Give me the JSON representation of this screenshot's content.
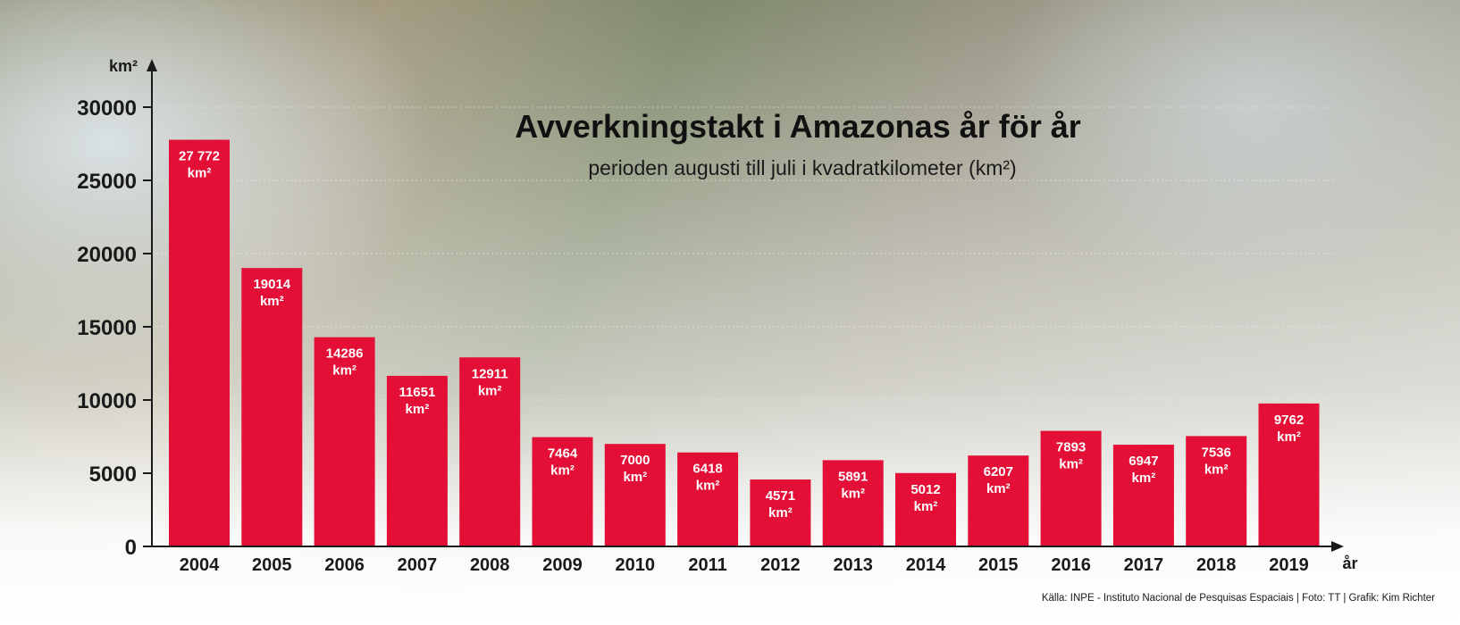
{
  "chart_data": {
    "type": "bar",
    "title": "Avverkningstakt i Amazonas år för år",
    "subtitle": "perioden augusti till juli i kvadratkilometer (km²)",
    "ylabel": "km²",
    "xlabel": "år",
    "ylim": [
      0,
      30000
    ],
    "yticks": [
      0,
      5000,
      10000,
      15000,
      20000,
      25000,
      30000
    ],
    "categories": [
      "2004",
      "2005",
      "2006",
      "2007",
      "2008",
      "2009",
      "2010",
      "2011",
      "2012",
      "2013",
      "2014",
      "2015",
      "2016",
      "2017",
      "2018",
      "2019"
    ],
    "values": [
      27772,
      19014,
      14286,
      11651,
      12911,
      7464,
      7000,
      6418,
      4571,
      5891,
      5012,
      6207,
      7893,
      6947,
      7536,
      9762
    ],
    "value_labels": [
      "27 772",
      "19014",
      "14286",
      "11651",
      "12911",
      "7464",
      "7000",
      "6418",
      "4571",
      "5891",
      "5012",
      "6207",
      "7893",
      "6947",
      "7536",
      "9762"
    ],
    "value_unit": "km²",
    "bar_color": "#e30f37",
    "grid": true,
    "source": "Källa: INPE - Instituto Nacional de Pesquisas Espaciais | Foto: TT | Grafik: Kim Richter"
  }
}
